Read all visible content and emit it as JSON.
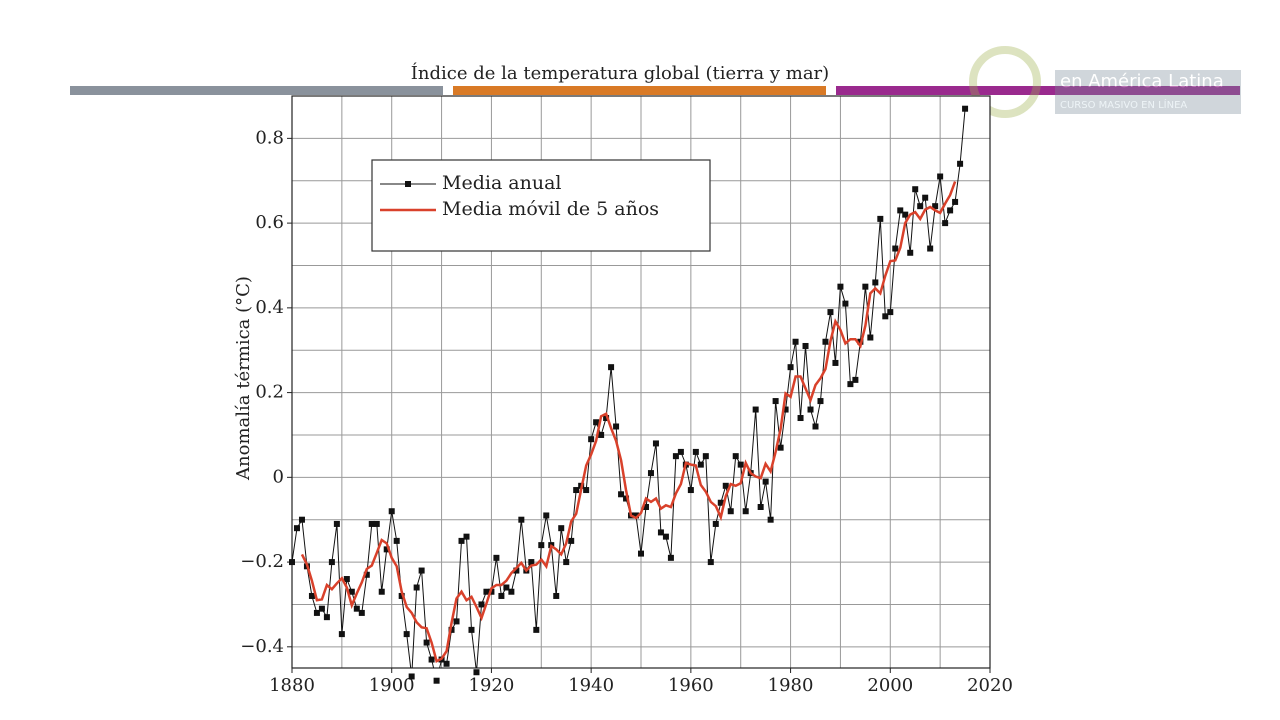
{
  "overlay": {
    "logo_line1": "en América Latina",
    "logo_line2": "CURSO MASIVO EN LÍNEA"
  },
  "chart_data": {
    "type": "line",
    "title": "Índice de la temperatura global (tierra y mar)",
    "ylabel": "Anomalía térmica (°C)",
    "xlim": [
      1880,
      2020
    ],
    "ylim": [
      -0.45,
      0.9
    ],
    "xticks": [
      1880,
      1900,
      1920,
      1940,
      1960,
      1980,
      2000,
      2020
    ],
    "yticks": [
      {
        "value": -0.4,
        "label": "−0.4"
      },
      {
        "value": -0.2,
        "label": "−0.2"
      },
      0,
      0.2,
      0.4,
      0.6,
      0.8
    ],
    "grid": true,
    "xgrid": [
      1880,
      1890,
      1900,
      1910,
      1920,
      1930,
      1940,
      1950,
      1960,
      1970,
      1980,
      1990,
      2000,
      2010,
      2020
    ],
    "ygrid": [
      -0.4,
      -0.3,
      -0.2,
      -0.1,
      0,
      0.1,
      0.2,
      0.3,
      0.4,
      0.5,
      0.6,
      0.7,
      0.8
    ],
    "legend": "upper left",
    "series": [
      {
        "name": "Media anual",
        "color": "#111111",
        "marker": "square",
        "x": [
          1880,
          1881,
          1882,
          1883,
          1884,
          1885,
          1886,
          1887,
          1888,
          1889,
          1890,
          1891,
          1892,
          1893,
          1894,
          1895,
          1896,
          1897,
          1898,
          1899,
          1900,
          1901,
          1902,
          1903,
          1904,
          1905,
          1906,
          1907,
          1908,
          1909,
          1910,
          1911,
          1912,
          1913,
          1914,
          1915,
          1916,
          1917,
          1918,
          1919,
          1920,
          1921,
          1922,
          1923,
          1924,
          1925,
          1926,
          1927,
          1928,
          1929,
          1930,
          1931,
          1932,
          1933,
          1934,
          1935,
          1936,
          1937,
          1938,
          1939,
          1940,
          1941,
          1942,
          1943,
          1944,
          1945,
          1946,
          1947,
          1948,
          1949,
          1950,
          1951,
          1952,
          1953,
          1954,
          1955,
          1956,
          1957,
          1958,
          1959,
          1960,
          1961,
          1962,
          1963,
          1964,
          1965,
          1966,
          1967,
          1968,
          1969,
          1970,
          1971,
          1972,
          1973,
          1974,
          1975,
          1976,
          1977,
          1978,
          1979,
          1980,
          1981,
          1982,
          1983,
          1984,
          1985,
          1986,
          1987,
          1988,
          1989,
          1990,
          1991,
          1992,
          1993,
          1994,
          1995,
          1996,
          1997,
          1998,
          1999,
          2000,
          2001,
          2002,
          2003,
          2004,
          2005,
          2006,
          2007,
          2008,
          2009,
          2010,
          2011,
          2012,
          2013,
          2014,
          2015
        ],
        "values": [
          -0.2,
          -0.12,
          -0.1,
          -0.21,
          -0.28,
          -0.32,
          -0.31,
          -0.33,
          -0.2,
          -0.11,
          -0.37,
          -0.24,
          -0.27,
          -0.31,
          -0.32,
          -0.23,
          -0.11,
          -0.11,
          -0.27,
          -0.17,
          -0.08,
          -0.15,
          -0.28,
          -0.37,
          -0.47,
          -0.26,
          -0.22,
          -0.39,
          -0.43,
          -0.48,
          -0.43,
          -0.44,
          -0.36,
          -0.34,
          -0.15,
          -0.14,
          -0.36,
          -0.46,
          -0.3,
          -0.27,
          -0.27,
          -0.19,
          -0.28,
          -0.26,
          -0.27,
          -0.22,
          -0.1,
          -0.22,
          -0.2,
          -0.36,
          -0.16,
          -0.09,
          -0.16,
          -0.28,
          -0.12,
          -0.2,
          -0.15,
          -0.03,
          -0.02,
          -0.03,
          0.09,
          0.13,
          0.1,
          0.14,
          0.26,
          0.12,
          -0.04,
          -0.05,
          -0.09,
          -0.09,
          -0.18,
          -0.07,
          0.01,
          0.08,
          -0.13,
          -0.14,
          -0.19,
          0.05,
          0.06,
          0.03,
          -0.03,
          0.06,
          0.03,
          0.05,
          -0.2,
          -0.11,
          -0.06,
          -0.02,
          -0.08,
          0.05,
          0.03,
          -0.08,
          0.01,
          0.16,
          -0.07,
          -0.01,
          -0.1,
          0.18,
          0.07,
          0.16,
          0.26,
          0.32,
          0.14,
          0.31,
          0.16,
          0.12,
          0.18,
          0.32,
          0.39,
          0.27,
          0.45,
          0.41,
          0.22,
          0.23,
          0.32,
          0.45,
          0.33,
          0.46,
          0.61,
          0.38,
          0.39,
          0.54,
          0.63,
          0.62,
          0.53,
          0.68,
          0.64,
          0.66,
          0.54,
          0.64,
          0.71,
          0.6,
          0.63,
          0.65,
          0.74,
          0.87
        ]
      },
      {
        "name": "Media móvil de 5 años",
        "color": "#d9412b",
        "x": [
          1882,
          1883,
          1884,
          1885,
          1886,
          1887,
          1888,
          1889,
          1890,
          1891,
          1892,
          1893,
          1894,
          1895,
          1896,
          1897,
          1898,
          1899,
          1900,
          1901,
          1902,
          1903,
          1904,
          1905,
          1906,
          1907,
          1908,
          1909,
          1910,
          1911,
          1912,
          1913,
          1914,
          1915,
          1916,
          1917,
          1918,
          1919,
          1920,
          1921,
          1922,
          1923,
          1924,
          1925,
          1926,
          1927,
          1928,
          1929,
          1930,
          1931,
          1932,
          1933,
          1934,
          1935,
          1936,
          1937,
          1938,
          1939,
          1940,
          1941,
          1942,
          1943,
          1944,
          1945,
          1946,
          1947,
          1948,
          1949,
          1950,
          1951,
          1952,
          1953,
          1954,
          1955,
          1956,
          1957,
          1958,
          1959,
          1960,
          1961,
          1962,
          1963,
          1964,
          1965,
          1966,
          1967,
          1968,
          1969,
          1970,
          1971,
          1972,
          1973,
          1974,
          1975,
          1976,
          1977,
          1978,
          1979,
          1980,
          1981,
          1982,
          1983,
          1984,
          1985,
          1986,
          1987,
          1988,
          1989,
          1990,
          1991,
          1992,
          1993,
          1994,
          1995,
          1996,
          1997,
          1998,
          1999,
          2000,
          2001,
          2002,
          2003,
          2004,
          2005,
          2006,
          2007,
          2008,
          2009,
          2010,
          2011,
          2012,
          2013
        ],
        "values": [
          -0.182,
          -0.206,
          -0.244,
          -0.29,
          -0.288,
          -0.254,
          -0.264,
          -0.25,
          -0.238,
          -0.26,
          -0.302,
          -0.274,
          -0.248,
          -0.216,
          -0.208,
          -0.178,
          -0.148,
          -0.156,
          -0.19,
          -0.21,
          -0.27,
          -0.306,
          -0.32,
          -0.342,
          -0.354,
          -0.356,
          -0.39,
          -0.434,
          -0.428,
          -0.41,
          -0.344,
          -0.286,
          -0.27,
          -0.29,
          -0.282,
          -0.306,
          -0.332,
          -0.298,
          -0.262,
          -0.254,
          -0.254,
          -0.244,
          -0.226,
          -0.214,
          -0.202,
          -0.22,
          -0.208,
          -0.206,
          -0.194,
          -0.21,
          -0.162,
          -0.17,
          -0.182,
          -0.156,
          -0.104,
          -0.086,
          -0.028,
          0.028,
          0.054,
          0.086,
          0.144,
          0.15,
          0.116,
          0.086,
          0.04,
          -0.03,
          -0.09,
          -0.096,
          -0.084,
          -0.05,
          -0.058,
          -0.05,
          -0.074,
          -0.066,
          -0.07,
          -0.038,
          -0.016,
          0.034,
          0.03,
          0.028,
          -0.018,
          -0.034,
          -0.058,
          -0.068,
          -0.094,
          -0.044,
          -0.016,
          -0.02,
          -0.014,
          0.034,
          0.01,
          0.002,
          -0.002,
          0.032,
          0.014,
          0.06,
          0.114,
          0.198,
          0.19,
          0.238,
          0.238,
          0.21,
          0.182,
          0.218,
          0.234,
          0.256,
          0.322,
          0.368,
          0.348,
          0.316,
          0.326,
          0.326,
          0.31,
          0.358,
          0.434,
          0.446,
          0.434,
          0.476,
          0.51,
          0.512,
          0.542,
          0.6,
          0.62,
          0.626,
          0.61,
          0.632,
          0.638,
          0.63,
          0.624,
          0.646,
          0.666,
          0.698
        ]
      }
    ]
  }
}
